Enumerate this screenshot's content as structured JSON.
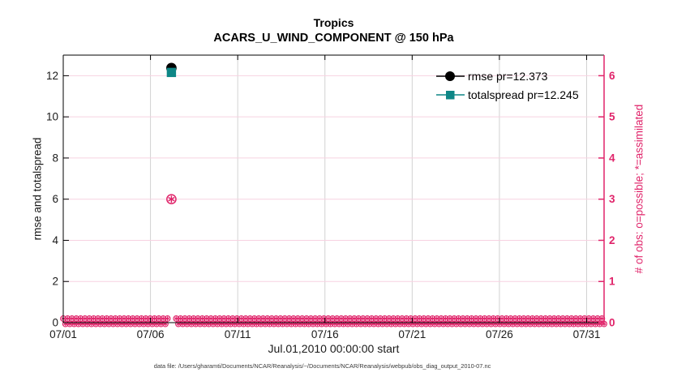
{
  "figure": {
    "title_line1": "Tropics",
    "title_line2": "ACARS_U_WIND_COMPONENT @ 150 hPa",
    "caption": "data file: /Users/gharamti/Documents/NCAR/Reanalysis/~/Documents/NCAR/Reanalysis/webpub/obs_diag_output_2010-07.nc"
  },
  "chart_data": {
    "type": "line",
    "title": "Tropics",
    "subtitle": "ACARS_U_WIND_COMPONENT @ 150 hPa",
    "x_axis": {
      "label": "Jul.01,2010 00:00:00 start",
      "tick_labels": [
        "07/01",
        "07/06",
        "07/11",
        "07/16",
        "07/21",
        "07/26",
        "07/31"
      ],
      "tick_days": [
        0,
        5,
        10,
        15,
        20,
        25,
        30
      ],
      "range_days": [
        0,
        31
      ]
    },
    "left_axis": {
      "label": "rmse and totalspread",
      "ticks": [
        0,
        2,
        4,
        6,
        8,
        10,
        12
      ],
      "ylim": [
        0,
        13
      ],
      "color": "#000000"
    },
    "right_axis": {
      "label": "# of obs: o=possible; *=assimilated",
      "ticks": [
        0,
        1,
        2,
        3,
        4,
        5,
        6
      ],
      "ylim": [
        0,
        6.5
      ],
      "color": "#e0246a"
    },
    "grid": {
      "horizontal_color": "#f7d2e1",
      "vertical_color": "#d2d2d2",
      "horizontal_at_right_values": [
        1,
        2,
        3,
        4,
        5,
        6
      ],
      "vertical_at_days": [
        5,
        10,
        15,
        20,
        25,
        30
      ]
    },
    "legend": [
      {
        "label": "rmse pr=12.373",
        "marker": "circle",
        "color": "#000000"
      },
      {
        "label": "totalspread pr=12.245",
        "marker": "square",
        "color": "#0e8686"
      }
    ],
    "series": [
      {
        "name": "rmse",
        "axis": "left",
        "marker": "filled-circle",
        "color": "#000000",
        "points": [
          {
            "day": 6.2,
            "date": "07/07",
            "value": 12.373
          }
        ]
      },
      {
        "name": "totalspread",
        "axis": "left",
        "marker": "filled-square",
        "color": "#0e8686",
        "points": [
          {
            "day": 6.2,
            "date": "07/07",
            "value": 12.245
          }
        ]
      },
      {
        "name": "obs_possible",
        "axis": "right",
        "marker": "open-circle",
        "color": "#e0246a",
        "points": [
          {
            "day": 6.2,
            "date": "07/07",
            "value": 3
          }
        ]
      },
      {
        "name": "obs_assimilated",
        "axis": "right",
        "marker": "asterisk",
        "color": "#e0246a",
        "points": [
          {
            "day": 6.2,
            "date": "07/07",
            "value": 3
          }
        ]
      }
    ],
    "obs_zero_band": {
      "axis": "right",
      "value": 0,
      "start_day": 0,
      "end_day": 31,
      "marker": "circle+asterisk",
      "color": "#e0246a",
      "gap_days": [
        6.2
      ]
    }
  }
}
